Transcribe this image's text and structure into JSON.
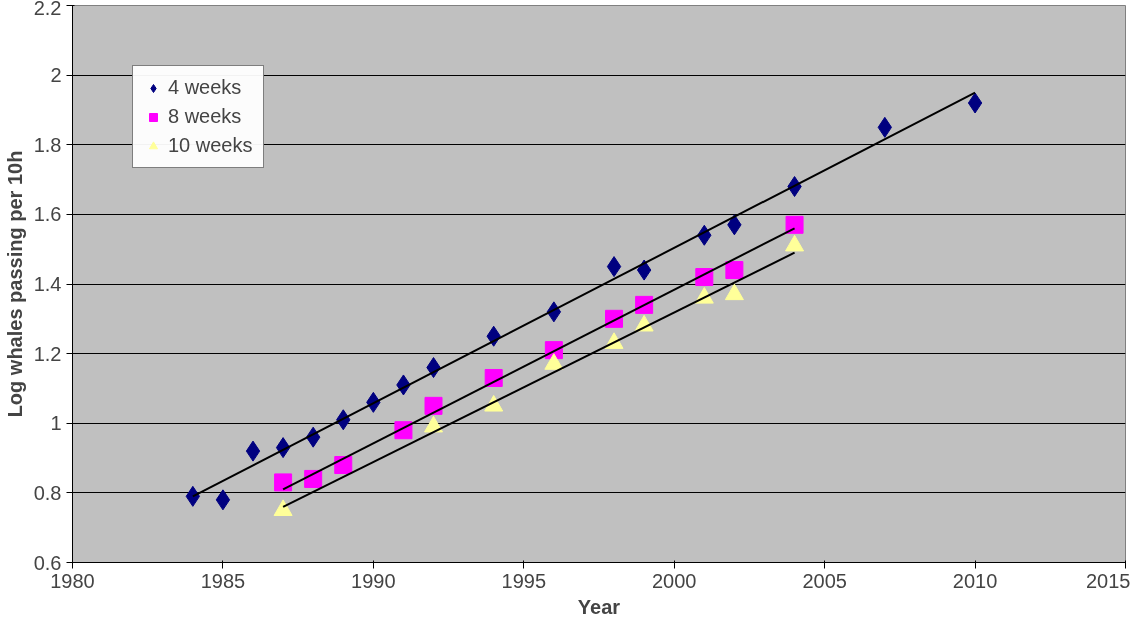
{
  "chart_data": {
    "type": "scatter",
    "xlabel": "Year",
    "ylabel": "Log whales passing per 10h",
    "xlim": [
      1980,
      2015
    ],
    "xticks": [
      1980,
      1985,
      1990,
      1995,
      2000,
      2005,
      2010,
      2015
    ],
    "ylim": [
      0.6,
      2.2
    ],
    "yticks": [
      0.6,
      0.8,
      1,
      1.2,
      1.4,
      1.6,
      1.8,
      2,
      2.2
    ],
    "grid": "y",
    "legend": "top left",
    "series": [
      {
        "name": "4 weeks",
        "color": "#000080",
        "marker": "diamond",
        "x": [
          1984,
          1985,
          1986,
          1987,
          1988,
          1989,
          1990,
          1991,
          1992,
          1994,
          1996,
          1998,
          1999,
          2001,
          2002,
          2004,
          2007,
          2010
        ],
        "values": [
          0.79,
          0.78,
          0.92,
          0.93,
          0.96,
          1.01,
          1.06,
          1.11,
          1.16,
          1.25,
          1.32,
          1.45,
          1.44,
          1.54,
          1.57,
          1.68,
          1.85,
          1.92
        ]
      },
      {
        "name": "8 weeks",
        "color": "#ff00ff",
        "marker": "square",
        "x": [
          1987,
          1988,
          1989,
          1991,
          1992,
          1994,
          1996,
          1998,
          1999,
          2001,
          2002,
          2004
        ],
        "values": [
          0.83,
          0.84,
          0.88,
          0.98,
          1.05,
          1.13,
          1.21,
          1.3,
          1.34,
          1.42,
          1.44,
          1.57
        ]
      },
      {
        "name": "10 weeks",
        "color": "#ffff99",
        "marker": "triangle",
        "x": [
          1987,
          1992,
          1994,
          1996,
          1998,
          1999,
          2001,
          2002,
          2004
        ],
        "values": [
          0.75,
          0.99,
          1.05,
          1.17,
          1.23,
          1.28,
          1.36,
          1.37,
          1.51
        ]
      },
      {
        "type": "line",
        "color": "#000000",
        "x": [
          1984,
          2010
        ],
        "values": [
          0.79,
          1.95
        ]
      },
      {
        "type": "line",
        "color": "#000000",
        "x": [
          1987,
          2004
        ],
        "values": [
          0.81,
          1.56
        ]
      },
      {
        "type": "line",
        "color": "#000000",
        "x": [
          1987,
          2004
        ],
        "values": [
          0.76,
          1.49
        ]
      }
    ]
  }
}
